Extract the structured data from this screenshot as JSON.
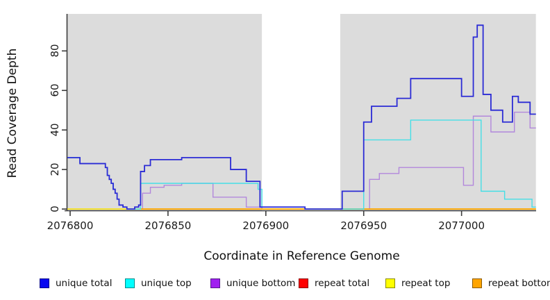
{
  "chart_data": {
    "type": "line",
    "step": true,
    "title": "",
    "xlabel": "Coordinate in Reference Genome",
    "ylabel": "Read Coverage Depth",
    "xlim": [
      2076798,
      2077038
    ],
    "ylim": [
      0,
      99
    ],
    "x_ticks": [
      2076800,
      2076850,
      2076900,
      2076950,
      2077000
    ],
    "y_ticks": [
      0,
      20,
      40,
      60,
      80
    ],
    "grid": false,
    "plot_background": "#DCDCDC",
    "background_bands": [
      {
        "from": 2076798,
        "to": 2076898,
        "color": "#DCDCDC"
      },
      {
        "from": 2076898,
        "to": 2076938,
        "color": "#FFFFFF"
      },
      {
        "from": 2076938,
        "to": 2077038,
        "color": "#DCDCDC"
      }
    ],
    "axis_color": "#3c3c3c",
    "legend_position": "bottom",
    "series": [
      {
        "name": "unique total",
        "line_color": "#2B2BD5",
        "line_width": 1.8,
        "legend_fill": "#0808F0",
        "legend_border": "#00008B",
        "points": [
          [
            2076798,
            26
          ],
          [
            2076805,
            23
          ],
          [
            2076818,
            21
          ],
          [
            2076819,
            17
          ],
          [
            2076820,
            15
          ],
          [
            2076821,
            13
          ],
          [
            2076822,
            10
          ],
          [
            2076823,
            8
          ],
          [
            2076824,
            5
          ],
          [
            2076825,
            2
          ],
          [
            2076827,
            1
          ],
          [
            2076829,
            0
          ],
          [
            2076833,
            1
          ],
          [
            2076835,
            2
          ],
          [
            2076836,
            19
          ],
          [
            2076838,
            22
          ],
          [
            2076841,
            25
          ],
          [
            2076857,
            26
          ],
          [
            2076882,
            20
          ],
          [
            2076890,
            14
          ],
          [
            2076897,
            1
          ],
          [
            2076920,
            0
          ],
          [
            2076939,
            9
          ],
          [
            2076950,
            44
          ],
          [
            2076954,
            52
          ],
          [
            2076967,
            56
          ],
          [
            2076974,
            66
          ],
          [
            2077000,
            57
          ],
          [
            2077006,
            87
          ],
          [
            2077008,
            93
          ],
          [
            2077011,
            58
          ],
          [
            2077015,
            50
          ],
          [
            2077021,
            44
          ],
          [
            2077026,
            57
          ],
          [
            2077029,
            54
          ],
          [
            2077035,
            48
          ],
          [
            2077038,
            48
          ]
        ]
      },
      {
        "name": "unique top",
        "line_color": "#45DFE6",
        "line_width": 1.4,
        "legend_fill": "#00FFFF",
        "legend_border": "#008B8B",
        "points": [
          [
            2076798,
            26
          ],
          [
            2076805,
            23
          ],
          [
            2076818,
            21
          ],
          [
            2076819,
            17
          ],
          [
            2076820,
            15
          ],
          [
            2076821,
            13
          ],
          [
            2076822,
            10
          ],
          [
            2076823,
            8
          ],
          [
            2076824,
            5
          ],
          [
            2076825,
            2
          ],
          [
            2076827,
            1
          ],
          [
            2076829,
            0
          ],
          [
            2076836,
            13
          ],
          [
            2076896,
            10
          ],
          [
            2076898,
            1
          ],
          [
            2076920,
            0
          ],
          [
            2076950,
            35
          ],
          [
            2076974,
            45
          ],
          [
            2077010,
            9
          ],
          [
            2077022,
            5
          ],
          [
            2077036,
            1
          ],
          [
            2077038,
            1
          ]
        ]
      },
      {
        "name": "unique bottom",
        "line_color": "#B287DB",
        "line_width": 1.4,
        "legend_fill": "#A020F0",
        "legend_border": "#551A8B",
        "points": [
          [
            2076798,
            0
          ],
          [
            2076837,
            8
          ],
          [
            2076841,
            11
          ],
          [
            2076848,
            12
          ],
          [
            2076857,
            13
          ],
          [
            2076873,
            6
          ],
          [
            2076890,
            1
          ],
          [
            2076898,
            0
          ],
          [
            2076953,
            15
          ],
          [
            2076958,
            18
          ],
          [
            2076968,
            21
          ],
          [
            2077001,
            12
          ],
          [
            2077006,
            47
          ],
          [
            2077015,
            39
          ],
          [
            2077027,
            49
          ],
          [
            2077035,
            41
          ],
          [
            2077038,
            41
          ]
        ]
      },
      {
        "name": "repeat total",
        "line_color": "#D0538A",
        "line_width": 1.5,
        "legend_fill": "#FF0000",
        "legend_border": "#8B0000",
        "points": [
          [
            2076798,
            0
          ],
          [
            2077038,
            0
          ]
        ]
      },
      {
        "name": "repeat top",
        "line_color": "#FFFF00",
        "line_width": 1.5,
        "legend_fill": "#FFFF00",
        "legend_border": "#8B8B00",
        "points": [
          [
            2076798,
            0
          ],
          [
            2077038,
            0
          ]
        ]
      },
      {
        "name": "repeat bottom",
        "line_color": "#FFA500",
        "line_width": 1.8,
        "legend_fill": "#FFA500",
        "legend_border": "#8B5A00",
        "points": [
          [
            2076836,
            0
          ],
          [
            2077038,
            0
          ]
        ]
      }
    ],
    "draw_order": [
      2,
      3,
      4,
      5,
      1,
      0
    ]
  }
}
